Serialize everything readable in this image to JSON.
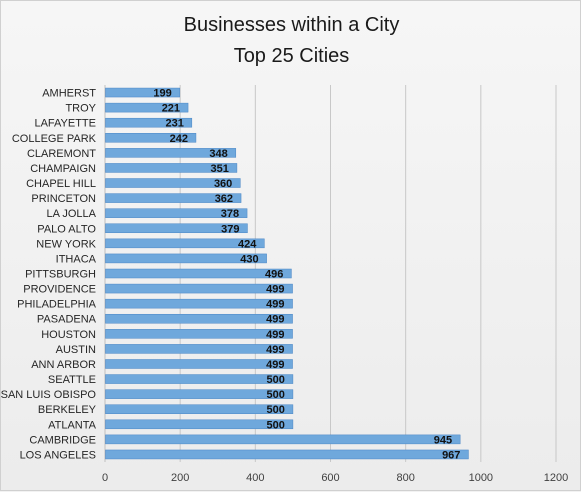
{
  "chart_data": {
    "type": "bar",
    "orientation": "horizontal",
    "title": [
      "Businesses within a City",
      "Top 25 Cities"
    ],
    "categories": [
      "AMHERST",
      "TROY",
      "LAFAYETTE",
      "COLLEGE PARK",
      "CLAREMONT",
      "CHAMPAIGN",
      "CHAPEL HILL",
      "PRINCETON",
      "LA JOLLA",
      "PALO ALTO",
      "NEW YORK",
      "ITHACA",
      "PITTSBURGH",
      "PROVIDENCE",
      "PHILADELPHIA",
      "PASADENA",
      "HOUSTON",
      "AUSTIN",
      "ANN ARBOR",
      "SEATTLE",
      "SAN LUIS OBISPO",
      "BERKELEY",
      "ATLANTA",
      "CAMBRIDGE",
      "LOS ANGELES"
    ],
    "values": [
      199,
      221,
      231,
      242,
      348,
      351,
      360,
      362,
      378,
      379,
      424,
      430,
      496,
      499,
      499,
      499,
      499,
      499,
      499,
      500,
      500,
      500,
      500,
      945,
      967
    ],
    "xlim": [
      0,
      1200
    ],
    "xticks": [
      0,
      200,
      400,
      600,
      800,
      1000,
      1200
    ],
    "grid": true,
    "data_labels": true,
    "legend": "none",
    "bar_color": "#6fa8dc",
    "bar_edge_color": "#4a86c5"
  }
}
